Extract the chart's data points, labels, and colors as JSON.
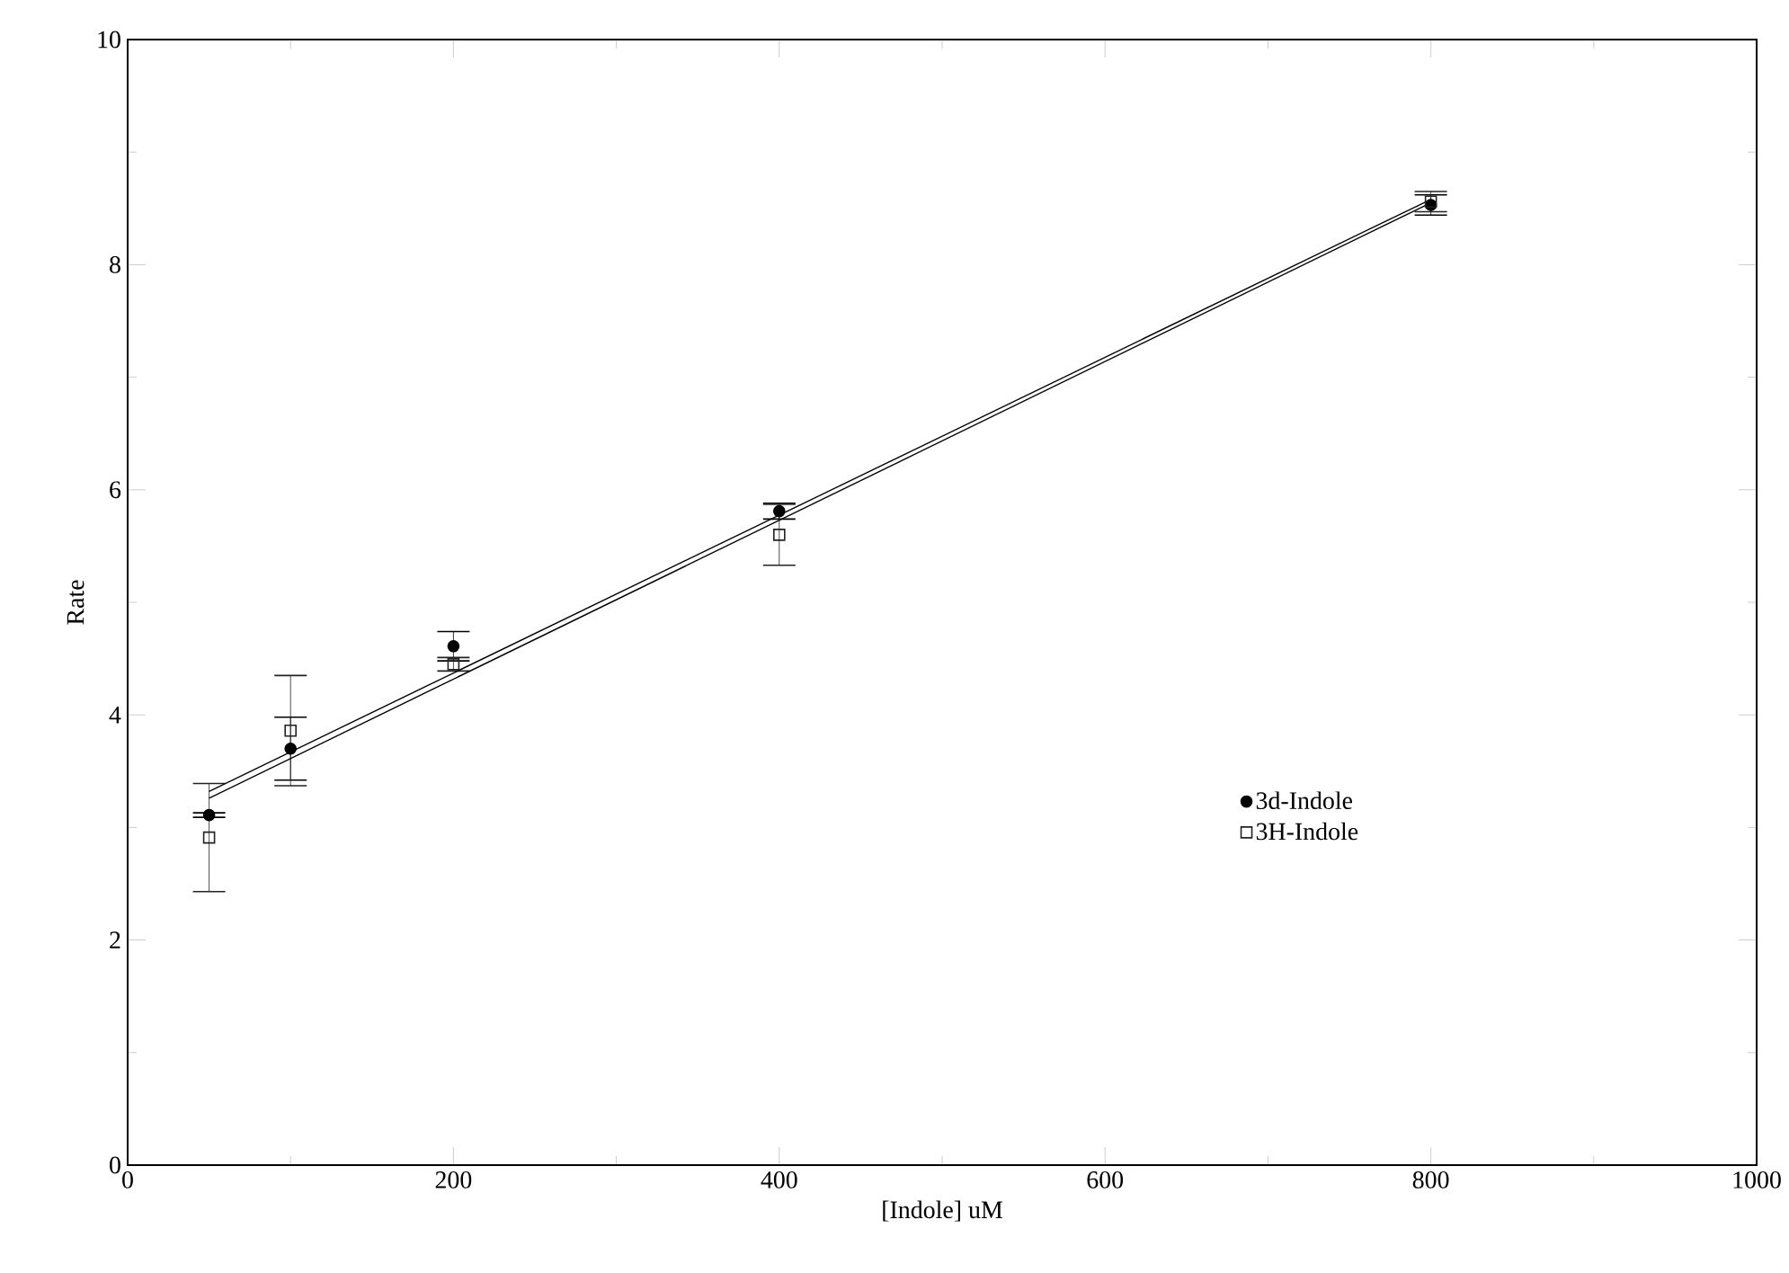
{
  "chart_data": {
    "type": "scatter",
    "xlabel": "[Indole] uM",
    "ylabel": "Rate",
    "xlim": [
      0,
      1000
    ],
    "ylim": [
      0,
      10
    ],
    "xticks": [
      0,
      200,
      400,
      600,
      800,
      1000
    ],
    "yticks": [
      0,
      2,
      4,
      6,
      8,
      10
    ],
    "grid": false,
    "legend": "right",
    "series": [
      {
        "name": "3d-Indole",
        "color": "#000000",
        "marker": "circle",
        "x": [
          50,
          100,
          200,
          400,
          800
        ],
        "values": [
          3.11,
          3.7,
          4.61,
          5.81,
          8.53
        ],
        "errors": [
          0.02,
          0.28,
          0.13,
          0.07,
          0.09
        ]
      },
      {
        "name": "3H-Indole",
        "color": "#222222",
        "marker": "square",
        "x": [
          50,
          100,
          200,
          400,
          800
        ],
        "values": [
          2.91,
          3.86,
          4.45,
          5.6,
          8.56
        ],
        "errors": [
          0.48,
          0.49,
          0.06,
          0.27,
          0.09
        ]
      },
      {
        "type": "line",
        "color": "#000000",
        "marker": "none",
        "x": [
          50,
          800
        ],
        "values": [
          3.32,
          8.58
        ]
      },
      {
        "type": "line",
        "color": "#000000",
        "marker": "none",
        "x": [
          50,
          800
        ],
        "values": [
          3.26,
          8.55
        ]
      }
    ]
  }
}
